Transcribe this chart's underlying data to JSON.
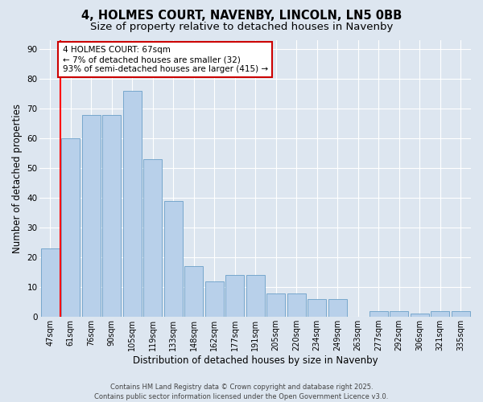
{
  "title1": "4, HOLMES COURT, NAVENBY, LINCOLN, LN5 0BB",
  "title2": "Size of property relative to detached houses in Navenby",
  "xlabel": "Distribution of detached houses by size in Navenby",
  "ylabel": "Number of detached properties",
  "categories": [
    "47sqm",
    "61sqm",
    "76sqm",
    "90sqm",
    "105sqm",
    "119sqm",
    "133sqm",
    "148sqm",
    "162sqm",
    "177sqm",
    "191sqm",
    "205sqm",
    "220sqm",
    "234sqm",
    "249sqm",
    "263sqm",
    "277sqm",
    "292sqm",
    "306sqm",
    "321sqm",
    "335sqm"
  ],
  "values": [
    23,
    60,
    68,
    68,
    76,
    53,
    39,
    17,
    12,
    14,
    14,
    8,
    8,
    6,
    6,
    0,
    2,
    2,
    1,
    2,
    2
  ],
  "bar_color": "#b8d0ea",
  "bar_edge_color": "#6a9fc8",
  "red_line_x": 0.5,
  "annotation_text": "4 HOLMES COURT: 67sqm\n← 7% of detached houses are smaller (32)\n93% of semi-detached houses are larger (415) →",
  "annotation_box_color": "#ffffff",
  "annotation_box_edge": "#cc0000",
  "footnote": "Contains HM Land Registry data © Crown copyright and database right 2025.\nContains public sector information licensed under the Open Government Licence v3.0.",
  "ylim": [
    0,
    93
  ],
  "yticks": [
    0,
    10,
    20,
    30,
    40,
    50,
    60,
    70,
    80,
    90
  ],
  "background_color": "#dde6f0",
  "plot_background": "#dde6f0",
  "grid_color": "#ffffff",
  "title_fontsize": 10.5,
  "subtitle_fontsize": 9.5,
  "tick_fontsize": 7,
  "ylabel_fontsize": 8.5,
  "xlabel_fontsize": 8.5,
  "annotation_fontsize": 7.5,
  "footnote_fontsize": 6
}
